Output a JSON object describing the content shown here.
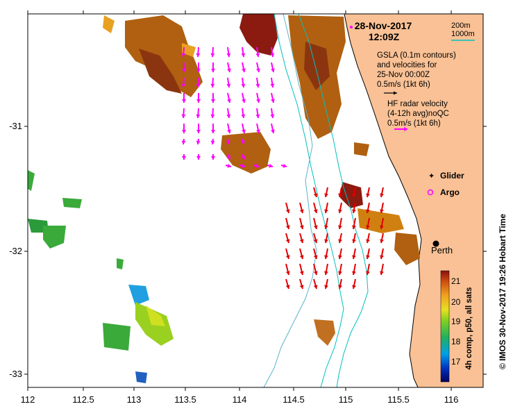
{
  "header": {
    "date": "28-Nov-2017",
    "time": "12:09Z"
  },
  "depth_legend": {
    "label_200": "200m",
    "label_1000": "1000m",
    "color_200": "#5ab4c8",
    "color_1000": "#00c0c0"
  },
  "gsla_legend": {
    "line1": "GSLA (0.1m contours)",
    "line2": "and velocities for",
    "line3": "25-Nov 00:00Z",
    "scale": "0.5m/s (1kt 6h)"
  },
  "radar_legend": {
    "line1": "HF radar velocity",
    "line2": "(4-12h avg)noQC",
    "scale": "0.5m/s (1kt 6h)"
  },
  "markers": {
    "glider": "Glider",
    "argo": "Argo",
    "city": "Perth",
    "marker_color": "#ff00ff"
  },
  "axes": {
    "x_ticks": [
      "112",
      "112.5",
      "113",
      "113.5",
      "114",
      "114.5",
      "115",
      "115.5",
      "116"
    ],
    "y_ticks": [
      "-31",
      "-32",
      "-33"
    ]
  },
  "colorbar": {
    "ticks": [
      "21",
      "20",
      "19",
      "18",
      "17"
    ],
    "label": "4h comp, p50, all sats"
  },
  "credit": "© IMOS 30-Nov-2017 19:26 Hobart Time",
  "colors": {
    "land": "#f9c195",
    "sst_warm": "#b06010",
    "sst_hot": "#8b1a10",
    "sst_mid": "#e8a020",
    "sst_cool": "#3aaa3a",
    "sst_cold": "#20a0e0",
    "radar_arrows": "#e00000",
    "altimetry_arrows": "#ff00ff"
  }
}
